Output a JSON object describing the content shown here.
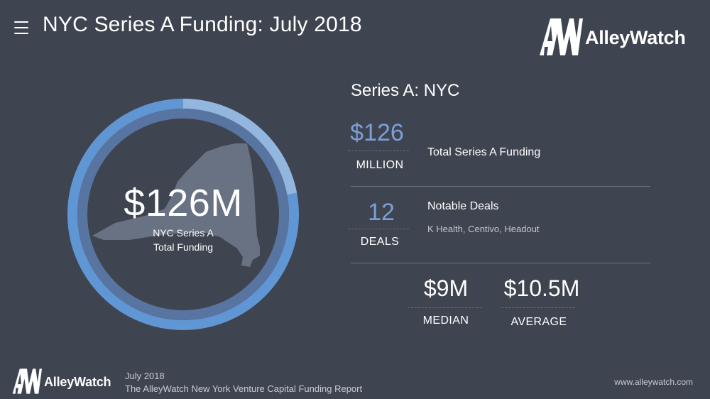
{
  "header": {
    "title": "NYC Series A Funding: July 2018",
    "logo_text": "AlleyWatch"
  },
  "colors": {
    "background": "#3e4450",
    "ring_main": "#6096d3",
    "ring_light": "#93b6df",
    "ring_inner": "#5874a0",
    "state_fill": "#687282",
    "accent_text": "#7c9fd6"
  },
  "donut": {
    "value": "$126M",
    "label_line1": "NYC Series A",
    "label_line2": "Total Funding",
    "light_segment_fraction": 0.22
  },
  "panel": {
    "title": "Series A: NYC",
    "total": {
      "value": "$126",
      "unit": "MILLION",
      "description": "Total Series A Funding"
    },
    "deals": {
      "value": "12",
      "unit": "DEALS",
      "description": "Notable Deals",
      "companies": "K Health, Centivo, Headout"
    },
    "median": {
      "value": "$9M",
      "label": "MEDIAN"
    },
    "average": {
      "value": "$10.5M",
      "label": "AVERAGE"
    }
  },
  "footer": {
    "logo_text": "AlleyWatch",
    "date": "July 2018",
    "report": "The AlleyWatch New York Venture Capital Funding Report",
    "url": "www.alleywatch.com"
  }
}
